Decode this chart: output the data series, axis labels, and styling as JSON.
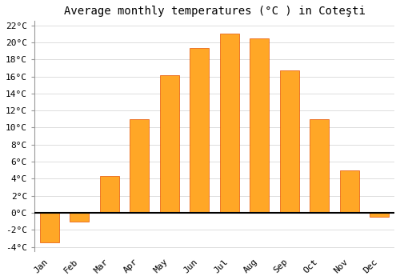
{
  "title": "Average monthly temperatures (°C ) in Coteşti",
  "months": [
    "Jan",
    "Feb",
    "Mar",
    "Apr",
    "May",
    "Jun",
    "Jul",
    "Aug",
    "Sep",
    "Oct",
    "Nov",
    "Dec"
  ],
  "values": [
    -3.5,
    -1.0,
    4.3,
    11.0,
    16.1,
    19.3,
    21.0,
    20.5,
    16.7,
    11.0,
    5.0,
    -0.5
  ],
  "bar_color": "#FFA726",
  "bar_edge_color": "#E65100",
  "background_color": "#FFFFFF",
  "plot_bg_color": "#FFFFFF",
  "grid_color": "#DDDDDD",
  "ylim_min": -4.5,
  "ylim_max": 22.5,
  "yticks": [
    -4,
    -2,
    0,
    2,
    4,
    6,
    8,
    10,
    12,
    14,
    16,
    18,
    20,
    22
  ],
  "title_fontsize": 10,
  "tick_fontsize": 8,
  "font_family": "monospace",
  "bar_width": 0.65
}
